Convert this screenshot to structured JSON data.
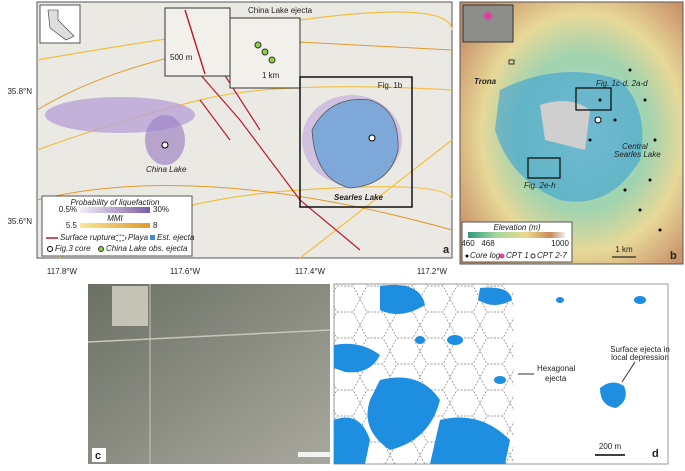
{
  "panel_a": {
    "label": "a",
    "lon_labels": [
      "117.8°W",
      "117.6°W",
      "117.4°W",
      "117.2°W"
    ],
    "lat_labels": [
      "35.8°N",
      "35.6°N"
    ],
    "callouts": {
      "fig_1b": "Fig. 1b",
      "china_lake_ejecta": "China Lake ejecta",
      "scale_500m": "500 m",
      "scale_1km": "1 km"
    },
    "places": [
      "China Lake",
      "Searles Lake"
    ],
    "legend": {
      "liquefaction_title": "Probability of liquefaction",
      "liquefaction_min": "0.5%",
      "liquefaction_max": "30%",
      "mmi_title": "MMI",
      "mmi_min": "5.5",
      "mmi_max": "8",
      "items": [
        "Surface rupture",
        "Playa",
        "Est. ejecta",
        "Fig.3 core",
        "China Lake obs. ejecta"
      ]
    }
  },
  "panel_b": {
    "label": "b",
    "places": [
      "Trona"
    ],
    "lake_lines": [
      "Central",
      "Searles Lake"
    ],
    "callouts": [
      "Fig. 1c-d, 2a-d",
      "Fig. 2e-h"
    ],
    "legend": {
      "title": "Elevation (m)",
      "ticks": [
        "460",
        "468",
        "1000"
      ],
      "items": [
        "Core log",
        "CPT 1",
        "CPT 2-7"
      ]
    },
    "scale": "1 km"
  },
  "panel_c": {
    "label": "c"
  },
  "panel_d": {
    "label": "d",
    "annotation_lines": [
      "Surface ejecta in",
      "local depression"
    ],
    "hex_lines": [
      "Hexagonal",
      "ejecta"
    ],
    "scale": "200 m"
  }
}
